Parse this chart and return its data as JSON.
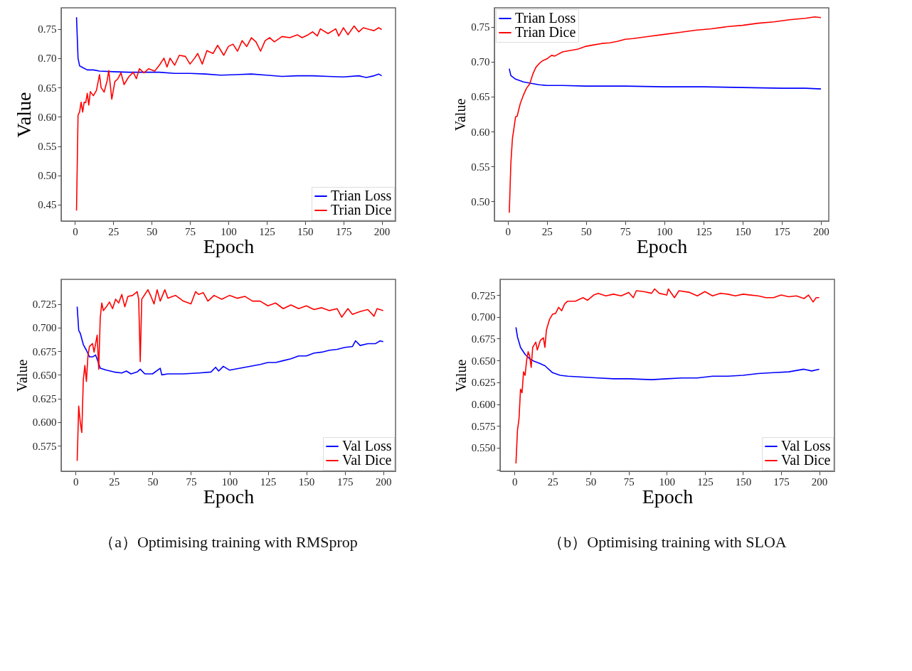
{
  "chart_data": [
    {
      "type": "line",
      "xlabel": "Epoch",
      "ylabel": "Value",
      "xlim": [
        -9,
        209
      ],
      "xticks": [
        0,
        25,
        50,
        75,
        100,
        125,
        150,
        175,
        200
      ],
      "ylim": [
        0.422,
        0.786
      ],
      "yticks": [
        {
          "value": 0.45,
          "label": "0.45"
        },
        {
          "value": 0.5,
          "label": "0.50"
        },
        {
          "value": 0.55,
          "label": "0.55"
        },
        {
          "value": 0.6,
          "label": "0.60"
        },
        {
          "value": 0.65,
          "label": "0.65"
        },
        {
          "value": 0.7,
          "label": "0.70"
        },
        {
          "value": 0.75,
          "label": "0.75"
        }
      ],
      "grid": false,
      "legend": "bottom right",
      "series": [
        {
          "name": "Trian Loss",
          "color": "#0000ff",
          "x": [
            1,
            2,
            3,
            5,
            8,
            12,
            16,
            25,
            35,
            45,
            55,
            65,
            75,
            85,
            95,
            105,
            115,
            125,
            135,
            145,
            155,
            165,
            175,
            185,
            190,
            195,
            198,
            200
          ],
          "values": [
            0.77,
            0.7,
            0.687,
            0.684,
            0.68,
            0.68,
            0.678,
            0.677,
            0.676,
            0.676,
            0.676,
            0.674,
            0.674,
            0.673,
            0.671,
            0.672,
            0.673,
            0.671,
            0.669,
            0.67,
            0.67,
            0.669,
            0.668,
            0.67,
            0.667,
            0.67,
            0.673,
            0.67
          ]
        },
        {
          "name": "Trian Dice",
          "color": "#ff0000",
          "x": [
            1,
            2,
            3,
            4,
            5,
            6,
            7,
            8,
            9,
            10,
            12,
            14,
            16,
            17,
            19,
            21,
            22,
            23,
            24,
            26,
            28,
            30,
            32,
            35,
            38,
            40,
            42,
            45,
            48,
            52,
            55,
            58,
            60,
            62,
            65,
            68,
            72,
            75,
            78,
            80,
            83,
            86,
            90,
            93,
            97,
            100,
            103,
            106,
            109,
            112,
            115,
            118,
            121,
            124,
            127,
            130,
            135,
            140,
            145,
            148,
            152,
            155,
            158,
            160,
            165,
            170,
            172,
            175,
            178,
            182,
            185,
            188,
            192,
            195,
            198,
            200
          ],
          "values": [
            0.44,
            0.603,
            0.608,
            0.625,
            0.608,
            0.625,
            0.624,
            0.64,
            0.62,
            0.643,
            0.636,
            0.645,
            0.672,
            0.65,
            0.642,
            0.662,
            0.679,
            0.655,
            0.63,
            0.66,
            0.665,
            0.675,
            0.655,
            0.668,
            0.676,
            0.665,
            0.682,
            0.675,
            0.682,
            0.678,
            0.688,
            0.7,
            0.685,
            0.7,
            0.688,
            0.705,
            0.703,
            0.69,
            0.7,
            0.708,
            0.69,
            0.713,
            0.708,
            0.722,
            0.705,
            0.72,
            0.724,
            0.712,
            0.73,
            0.72,
            0.735,
            0.728,
            0.712,
            0.73,
            0.735,
            0.728,
            0.737,
            0.735,
            0.74,
            0.735,
            0.74,
            0.745,
            0.738,
            0.75,
            0.742,
            0.75,
            0.738,
            0.752,
            0.74,
            0.755,
            0.745,
            0.752,
            0.749,
            0.747,
            0.752,
            0.749
          ]
        }
      ]
    },
    {
      "type": "line",
      "xlabel": "Epoch",
      "ylabel": "Value",
      "xlim": [
        -8.5,
        205
      ],
      "xticks": [
        0,
        25,
        50,
        75,
        100,
        125,
        150,
        175,
        200
      ],
      "ylim": [
        0.472,
        0.777
      ],
      "yticks": [
        {
          "value": 0.5,
          "label": "0.50"
        },
        {
          "value": 0.55,
          "label": "0.55"
        },
        {
          "value": 0.6,
          "label": "0.60"
        },
        {
          "value": 0.65,
          "label": "0.65"
        },
        {
          "value": 0.7,
          "label": "0.70"
        },
        {
          "value": 0.75,
          "label": "0.75"
        }
      ],
      "grid": false,
      "legend": "top left",
      "series": [
        {
          "name": "Trian Loss",
          "color": "#0000ff",
          "x": [
            1,
            2,
            5,
            10,
            15,
            20,
            25,
            35,
            50,
            75,
            100,
            125,
            150,
            175,
            190,
            200
          ],
          "values": [
            0.69,
            0.68,
            0.675,
            0.671,
            0.669,
            0.667,
            0.666,
            0.666,
            0.665,
            0.665,
            0.664,
            0.664,
            0.663,
            0.662,
            0.662,
            0.661
          ]
        },
        {
          "name": "Trian Dice",
          "color": "#ff0000",
          "x": [
            1,
            2,
            3,
            4,
            5,
            6,
            8,
            10,
            12,
            14,
            16,
            18,
            20,
            22,
            25,
            28,
            30,
            35,
            40,
            45,
            50,
            55,
            60,
            65,
            70,
            75,
            80,
            90,
            100,
            110,
            120,
            130,
            140,
            150,
            160,
            170,
            180,
            190,
            196,
            200
          ],
          "values": [
            0.484,
            0.555,
            0.59,
            0.605,
            0.621,
            0.622,
            0.64,
            0.652,
            0.662,
            0.668,
            0.682,
            0.692,
            0.697,
            0.701,
            0.704,
            0.709,
            0.708,
            0.714,
            0.716,
            0.718,
            0.722,
            0.724,
            0.726,
            0.727,
            0.729,
            0.732,
            0.733,
            0.736,
            0.739,
            0.742,
            0.745,
            0.747,
            0.75,
            0.752,
            0.755,
            0.757,
            0.76,
            0.762,
            0.764,
            0.763
          ]
        }
      ]
    },
    {
      "type": "line",
      "xlabel": "Epoch",
      "ylabel": "Value",
      "xlim": [
        -9.4,
        208
      ],
      "xticks": [
        0,
        25,
        50,
        75,
        100,
        125,
        150,
        175,
        200
      ],
      "ylim": [
        0.548,
        0.751
      ],
      "yticks": [
        {
          "value": 0.575,
          "label": "0.575"
        },
        {
          "value": 0.6,
          "label": "0.600"
        },
        {
          "value": 0.625,
          "label": "0.625"
        },
        {
          "value": 0.65,
          "label": "0.650"
        },
        {
          "value": 0.675,
          "label": "0.675"
        },
        {
          "value": 0.7,
          "label": "0.700"
        },
        {
          "value": 0.725,
          "label": "0.725"
        }
      ],
      "grid": false,
      "legend": "bottom right",
      "annotations": [
        "（a）Optimising training with RMSprop"
      ],
      "series": [
        {
          "name": "Val Loss",
          "color": "#0000ff",
          "x": [
            1,
            2,
            3,
            4,
            5,
            7,
            9,
            11,
            13,
            15,
            16,
            20,
            25,
            30,
            33,
            36,
            40,
            42,
            45,
            50,
            55,
            56,
            60,
            70,
            80,
            88,
            91,
            93,
            96,
            100,
            110,
            120,
            125,
            130,
            135,
            140,
            145,
            150,
            155,
            160,
            165,
            170,
            175,
            180,
            182,
            185,
            190,
            195,
            198,
            200
          ],
          "values": [
            0.722,
            0.697,
            0.694,
            0.688,
            0.682,
            0.676,
            0.669,
            0.669,
            0.671,
            0.662,
            0.657,
            0.655,
            0.653,
            0.652,
            0.654,
            0.651,
            0.653,
            0.656,
            0.651,
            0.651,
            0.657,
            0.65,
            0.651,
            0.651,
            0.652,
            0.653,
            0.658,
            0.654,
            0.659,
            0.655,
            0.658,
            0.661,
            0.663,
            0.663,
            0.665,
            0.667,
            0.67,
            0.67,
            0.673,
            0.674,
            0.676,
            0.677,
            0.679,
            0.68,
            0.686,
            0.681,
            0.683,
            0.683,
            0.686,
            0.685
          ]
        },
        {
          "name": "Val Dice",
          "color": "#ff0000",
          "x": [
            1,
            2,
            3,
            4,
            5,
            6,
            7,
            8,
            9,
            11,
            12,
            14,
            15,
            16,
            17,
            18,
            20,
            22,
            24,
            26,
            28,
            30,
            32,
            34,
            37,
            40,
            41,
            42,
            43,
            45,
            47,
            49,
            51,
            53,
            55,
            58,
            60,
            65,
            70,
            75,
            78,
            80,
            83,
            86,
            90,
            95,
            100,
            105,
            110,
            115,
            120,
            125,
            130,
            135,
            140,
            145,
            150,
            155,
            160,
            165,
            170,
            173,
            177,
            180,
            185,
            190,
            194,
            196,
            200
          ],
          "values": [
            0.559,
            0.617,
            0.6,
            0.589,
            0.645,
            0.66,
            0.643,
            0.67,
            0.68,
            0.683,
            0.674,
            0.692,
            0.656,
            0.71,
            0.726,
            0.718,
            0.722,
            0.727,
            0.72,
            0.73,
            0.726,
            0.735,
            0.722,
            0.733,
            0.734,
            0.738,
            0.73,
            0.664,
            0.73,
            0.735,
            0.74,
            0.733,
            0.725,
            0.74,
            0.728,
            0.74,
            0.731,
            0.734,
            0.728,
            0.725,
            0.738,
            0.735,
            0.737,
            0.728,
            0.734,
            0.73,
            0.734,
            0.731,
            0.733,
            0.728,
            0.728,
            0.723,
            0.726,
            0.72,
            0.724,
            0.72,
            0.723,
            0.719,
            0.721,
            0.718,
            0.72,
            0.711,
            0.72,
            0.714,
            0.717,
            0.719,
            0.712,
            0.72,
            0.718
          ]
        }
      ]
    },
    {
      "type": "line",
      "xlabel": "Epoch",
      "ylabel": "Value",
      "xlim": [
        -9.4,
        210
      ],
      "xticks": [
        0,
        25,
        50,
        75,
        100,
        125,
        150,
        175,
        200
      ],
      "ylim": [
        0.523,
        0.743
      ],
      "yticks": [
        {
          "value": 0.525,
          "label": null
        },
        {
          "value": 0.55,
          "label": "0.550"
        },
        {
          "value": 0.575,
          "label": "0.575"
        },
        {
          "value": 0.6,
          "label": "0.600"
        },
        {
          "value": 0.625,
          "label": "0.625"
        },
        {
          "value": 0.65,
          "label": "0.650"
        },
        {
          "value": 0.675,
          "label": "0.675"
        },
        {
          "value": 0.7,
          "label": "0.700"
        },
        {
          "value": 0.725,
          "label": "0.725"
        }
      ],
      "grid": false,
      "legend": "bottom right",
      "annotations": [
        "（b）Optimising training with SLOA"
      ],
      "series": [
        {
          "name": "Val Loss",
          "color": "#0000ff",
          "x": [
            1,
            2,
            4,
            7,
            10,
            13,
            16,
            20,
            25,
            30,
            35,
            45,
            55,
            65,
            75,
            90,
            100,
            110,
            120,
            130,
            140,
            150,
            160,
            170,
            180,
            190,
            195,
            200
          ],
          "values": [
            0.688,
            0.677,
            0.665,
            0.657,
            0.652,
            0.649,
            0.647,
            0.644,
            0.636,
            0.633,
            0.632,
            0.631,
            0.63,
            0.629,
            0.629,
            0.628,
            0.629,
            0.63,
            0.63,
            0.632,
            0.632,
            0.633,
            0.635,
            0.636,
            0.637,
            0.64,
            0.638,
            0.64
          ]
        },
        {
          "name": "Val Dice",
          "color": "#ff0000",
          "x": [
            1,
            2,
            3,
            4,
            5,
            6,
            7,
            8,
            9,
            10,
            11,
            12,
            14,
            15,
            17,
            19,
            20,
            21,
            23,
            25,
            27,
            29,
            31,
            33,
            35,
            40,
            45,
            48,
            52,
            55,
            60,
            65,
            70,
            75,
            78,
            80,
            85,
            90,
            92,
            95,
            100,
            101,
            105,
            108,
            115,
            120,
            125,
            130,
            135,
            140,
            145,
            150,
            155,
            160,
            165,
            170,
            175,
            180,
            185,
            190,
            193,
            196,
            198,
            200
          ],
          "values": [
            0.532,
            0.57,
            0.583,
            0.617,
            0.613,
            0.637,
            0.633,
            0.65,
            0.66,
            0.655,
            0.642,
            0.665,
            0.671,
            0.662,
            0.673,
            0.676,
            0.665,
            0.685,
            0.697,
            0.703,
            0.704,
            0.711,
            0.707,
            0.715,
            0.718,
            0.718,
            0.722,
            0.719,
            0.725,
            0.727,
            0.724,
            0.726,
            0.724,
            0.728,
            0.722,
            0.73,
            0.729,
            0.727,
            0.732,
            0.727,
            0.725,
            0.732,
            0.722,
            0.73,
            0.728,
            0.724,
            0.729,
            0.724,
            0.727,
            0.726,
            0.724,
            0.726,
            0.725,
            0.724,
            0.722,
            0.722,
            0.725,
            0.723,
            0.724,
            0.721,
            0.725,
            0.717,
            0.722,
            0.722
          ]
        }
      ]
    }
  ]
}
